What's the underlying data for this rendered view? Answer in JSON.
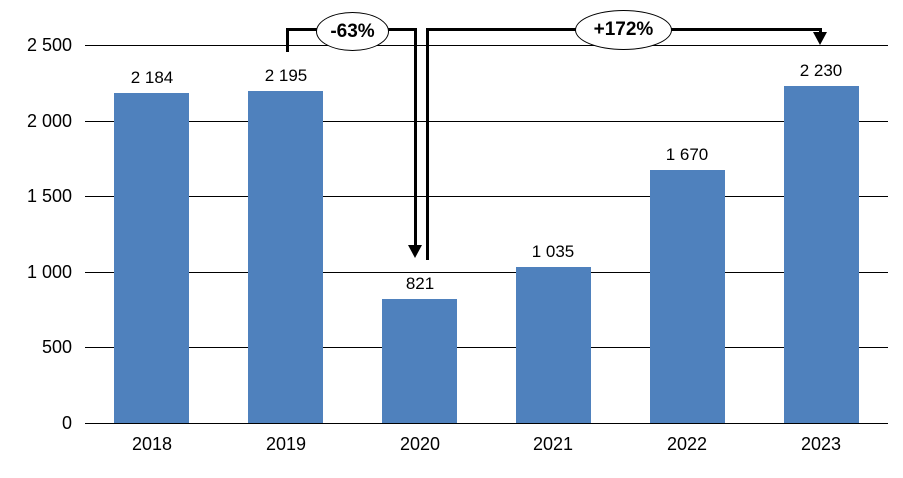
{
  "chart_data": {
    "type": "bar",
    "title": "",
    "xlabel": "",
    "ylabel": "",
    "categories": [
      "2018",
      "2019",
      "2020",
      "2021",
      "2022",
      "2023"
    ],
    "values": [
      2184,
      2195,
      821,
      1035,
      1670,
      2230
    ],
    "value_labels": [
      "2 184",
      "2 195",
      "821",
      "1 035",
      "1 670",
      "2 230"
    ],
    "yticks": [
      0,
      500,
      1000,
      1500,
      2000,
      2500
    ],
    "ytick_labels": [
      "0",
      "500",
      "1 000",
      "1 500",
      "2 000",
      "2 500"
    ],
    "ylim": [
      0,
      2500
    ],
    "grid": "horizontal",
    "legend": "none",
    "bar_color": "#4f81bd",
    "line_color": "#000000",
    "annotations": [
      {
        "label": "-63%",
        "from": "2019",
        "to": "2020",
        "shape": "ellipse-on-arrow",
        "direction": "down-to-2020"
      },
      {
        "label": "+172%",
        "from": "2020",
        "to": "2023",
        "shape": "ellipse-on-arrow",
        "direction": "down-to-2023"
      }
    ]
  }
}
